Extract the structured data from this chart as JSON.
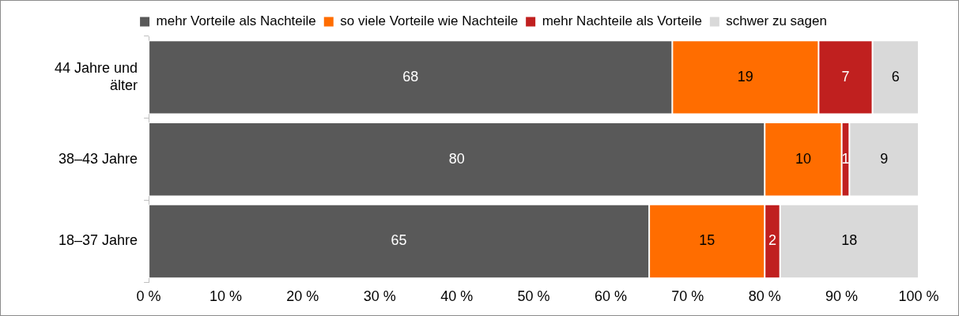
{
  "chart_data": {
    "type": "bar",
    "orientation": "horizontal",
    "stacked": true,
    "data_labels": true,
    "grid": false,
    "legend": "top",
    "categories": [
      "44 Jahre und älter",
      "38–43 Jahre",
      "18–37 Jahre"
    ],
    "series": [
      {
        "name": "mehr Vorteile als Nachteile",
        "color": "#595959",
        "values": [
          68,
          80,
          65
        ]
      },
      {
        "name": "so viele Vorteile wie Nachteile",
        "color": "#ff6d00",
        "values": [
          19,
          10,
          15
        ]
      },
      {
        "name": "mehr Nachteile als Vorteile",
        "color": "#c0201f",
        "values": [
          7,
          1,
          2
        ]
      },
      {
        "name": "schwer zu sagen",
        "color": "#d9d9d9",
        "values": [
          6,
          9,
          18
        ]
      }
    ],
    "xlim": [
      0,
      100
    ],
    "xticks": [
      {
        "value": 0,
        "label": "0 %"
      },
      {
        "value": 10,
        "label": "10 %"
      },
      {
        "value": 20,
        "label": "20 %"
      },
      {
        "value": 30,
        "label": "30 %"
      },
      {
        "value": 40,
        "label": "40 %"
      },
      {
        "value": 50,
        "label": "50 %"
      },
      {
        "value": 60,
        "label": "60 %"
      },
      {
        "value": 70,
        "label": "70 %"
      },
      {
        "value": 80,
        "label": "80 %"
      },
      {
        "value": 90,
        "label": "90 %"
      },
      {
        "value": 100,
        "label": "100 %"
      }
    ]
  }
}
